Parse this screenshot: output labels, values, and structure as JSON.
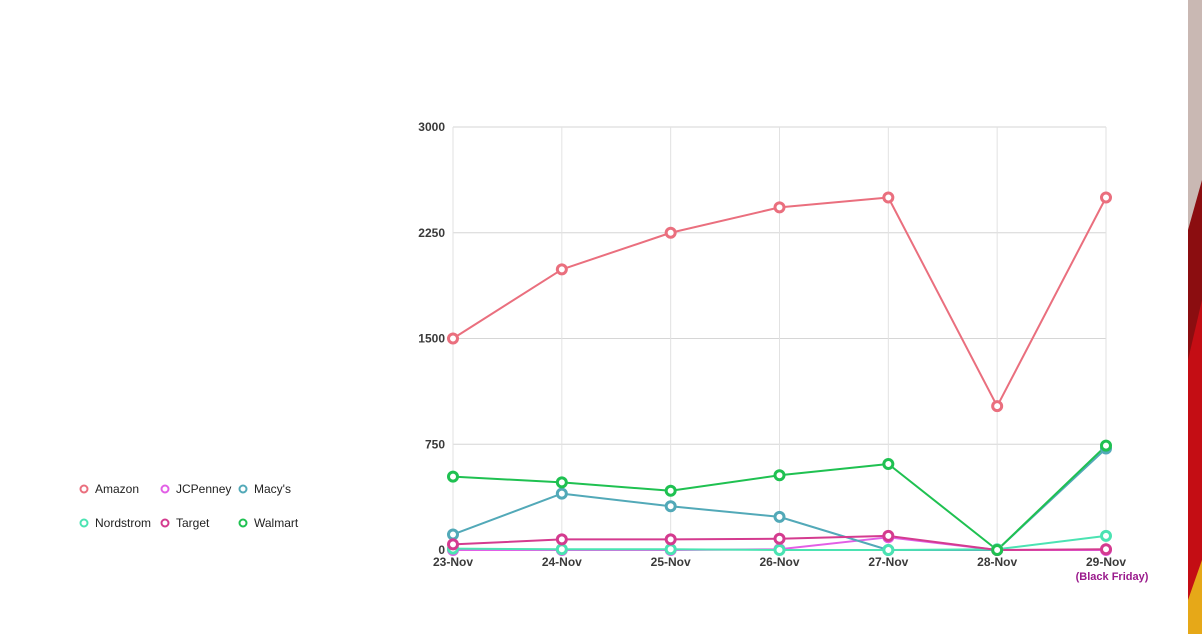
{
  "chart_data": {
    "type": "line",
    "categories": [
      "23-Nov",
      "24-Nov",
      "25-Nov",
      "26-Nov",
      "27-Nov",
      "28-Nov",
      "29-Nov"
    ],
    "category_note": {
      "index": 6,
      "text": "(Black Friday)",
      "color": "#9a1a8c"
    },
    "ylim": [
      0,
      3000
    ],
    "yticks": [
      0,
      750,
      1500,
      2250,
      3000
    ],
    "grid": true,
    "legend_position": "left",
    "series": [
      {
        "name": "Amazon",
        "color": "#ea6f7e",
        "values": [
          1500,
          1990,
          2250,
          2430,
          2500,
          1020,
          2500
        ]
      },
      {
        "name": "JCPenney",
        "color": "#e25fe6",
        "values": [
          0,
          0,
          0,
          5,
          90,
          0,
          0
        ]
      },
      {
        "name": "Macy's",
        "color": "#52a9b8",
        "values": [
          110,
          400,
          310,
          235,
          0,
          0,
          720
        ]
      },
      {
        "name": "Nordstrom",
        "color": "#4be3b2",
        "values": [
          10,
          5,
          5,
          0,
          0,
          5,
          100
        ]
      },
      {
        "name": "Target",
        "color": "#d43b8f",
        "values": [
          40,
          75,
          75,
          80,
          100,
          0,
          5
        ]
      },
      {
        "name": "Walmart",
        "color": "#1fc151",
        "values": [
          520,
          480,
          420,
          530,
          610,
          0,
          740
        ]
      }
    ]
  }
}
